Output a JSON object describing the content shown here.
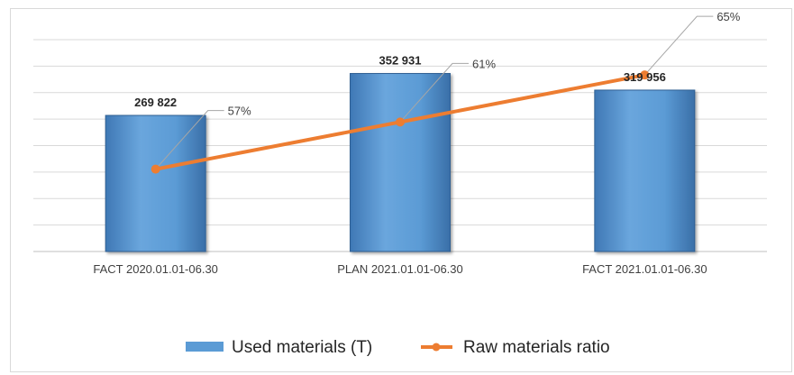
{
  "chart_data": {
    "type": "bar",
    "title": "",
    "xlabel": "",
    "ylabel": "",
    "grid": true,
    "legend_position": "bottom",
    "categories": [
      "FACT 2020.01.01-06.30",
      "PLAN 2021.01.01-06.30",
      "FACT 2021.01.01-06.30"
    ],
    "series": [
      {
        "name": "Used materials (T)",
        "kind": "bar",
        "values": [
          269822,
          352931,
          319956
        ],
        "labels": [
          "269 822",
          "352 931",
          "319 956"
        ],
        "color": "#5b9bd5",
        "ylim": [
          0,
          420000
        ]
      },
      {
        "name": "Raw materials ratio",
        "kind": "line",
        "values": [
          57,
          61,
          65
        ],
        "labels": [
          "57%",
          "61%",
          "65%"
        ],
        "color": "#ed7d31",
        "ylim": [
          50,
          68
        ]
      }
    ]
  }
}
